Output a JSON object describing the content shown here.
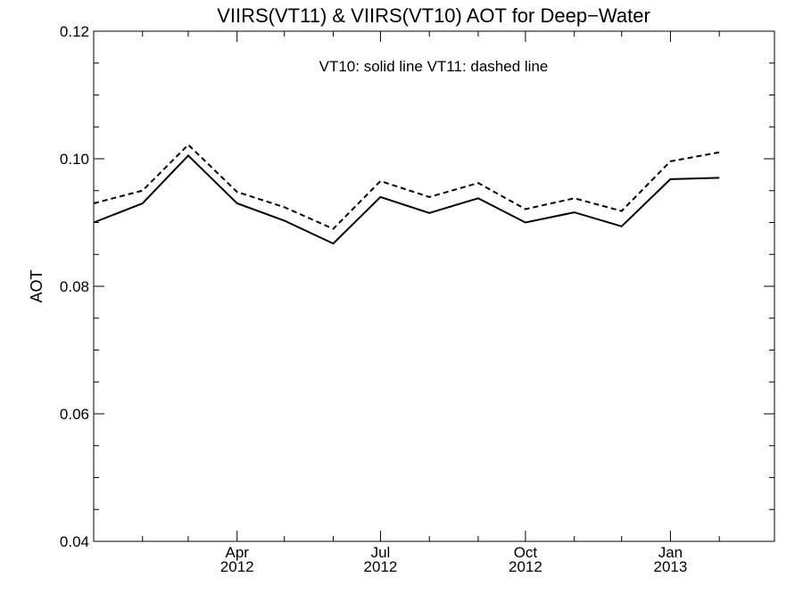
{
  "chart_data": {
    "type": "line",
    "title": "VIIRS(VT11) & VIIRS(VT10)  AOT for Deep−Water",
    "annotation": "VT10: solid line   VT11: dashed line",
    "ylabel": "AOT",
    "ylim": [
      0.04,
      0.12
    ],
    "grid": false,
    "y_ticks": [
      {
        "value": 0.04,
        "label": "0.04"
      },
      {
        "value": 0.06,
        "label": "0.06"
      },
      {
        "value": 0.08,
        "label": "0.08"
      },
      {
        "value": 0.1,
        "label": "0.10"
      },
      {
        "value": 0.12,
        "label": "0.12"
      }
    ],
    "y_minor_ticks": [
      0.045,
      0.05,
      0.055,
      0.065,
      0.07,
      0.075,
      0.085,
      0.09,
      0.095,
      0.105,
      0.11,
      0.115
    ],
    "xlim": [
      "2012-01-01",
      "2013-03-08"
    ],
    "x_ticks": [
      {
        "value": "2012-04-01",
        "month": "Apr",
        "year": "2012"
      },
      {
        "value": "2012-07-01",
        "month": "Jul",
        "year": "2012"
      },
      {
        "value": "2012-10-01",
        "month": "Oct",
        "year": "2012"
      },
      {
        "value": "2013-01-01",
        "month": "Jan",
        "year": "2013"
      }
    ],
    "x_minor_ticks": [
      "2012-02-01",
      "2012-03-01",
      "2012-05-01",
      "2012-06-01",
      "2012-08-01",
      "2012-09-01",
      "2012-11-01",
      "2012-12-01",
      "2013-02-01"
    ],
    "series": [
      {
        "style": "solid",
        "x": [
          "2012-01-01",
          "2012-02-01",
          "2012-03-01",
          "2012-04-01",
          "2012-05-01",
          "2012-06-01",
          "2012-07-01",
          "2012-08-01",
          "2012-09-01",
          "2012-10-01",
          "2012-11-01",
          "2012-12-01",
          "2013-01-01",
          "2013-02-01"
        ],
        "values": [
          0.09,
          0.093,
          0.1005,
          0.093,
          0.0903,
          0.0867,
          0.094,
          0.0915,
          0.0938,
          0.09,
          0.0916,
          0.0894,
          0.0968,
          0.097
        ]
      },
      {
        "style": "dashed",
        "x": [
          "2012-01-01",
          "2012-02-01",
          "2012-03-01",
          "2012-04-01",
          "2012-05-01",
          "2012-06-01",
          "2012-07-01",
          "2012-08-01",
          "2012-09-01",
          "2012-10-01",
          "2012-11-01",
          "2012-12-01",
          "2013-01-01",
          "2013-02-01"
        ],
        "values": [
          0.093,
          0.095,
          0.1022,
          0.0948,
          0.0924,
          0.089,
          0.0965,
          0.094,
          0.0962,
          0.0921,
          0.0938,
          0.0918,
          0.0996,
          0.101
        ]
      }
    ]
  }
}
